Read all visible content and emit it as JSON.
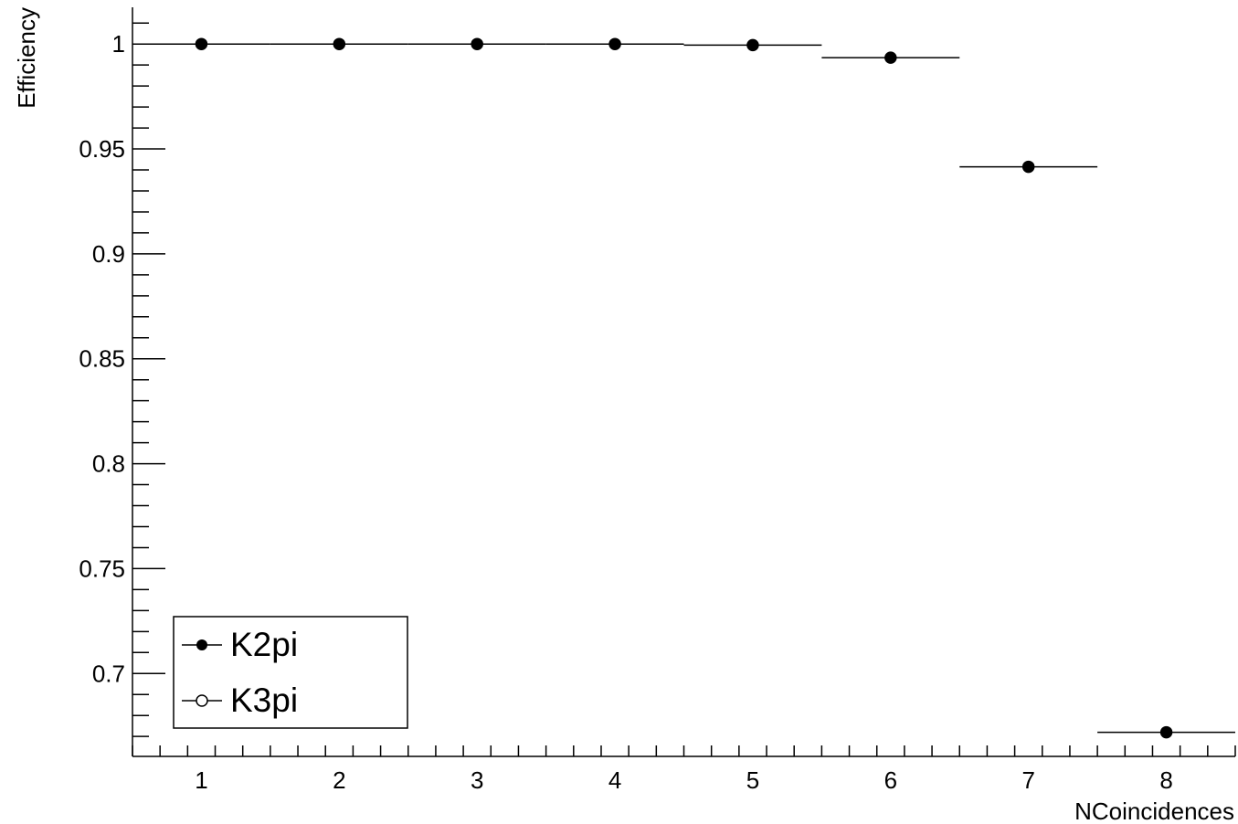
{
  "chart_data": {
    "type": "scatter",
    "title": "",
    "xlabel": "NCoincidences",
    "ylabel": "Efficiency",
    "xlim": [
      0.5,
      8.5
    ],
    "ylim": [
      0.6605,
      1.0175
    ],
    "x_ticks": [
      1,
      2,
      3,
      4,
      5,
      6,
      7,
      8
    ],
    "y_ticks": [
      0.7,
      0.75,
      0.8,
      0.85,
      0.9,
      0.95,
      1
    ],
    "x_tick_labels": [
      "1",
      "2",
      "3",
      "4",
      "5",
      "6",
      "7",
      "8"
    ],
    "y_tick_labels": [
      "0.7",
      "0.75",
      "0.8",
      "0.85",
      "0.9",
      "0.95",
      "1"
    ],
    "x_error_halfwidth": 0.5,
    "legend_position": "bottom-left",
    "legend": [
      {
        "label": "K2pi",
        "marker": "filled-circle"
      },
      {
        "label": "K3pi",
        "marker": "open-circle"
      }
    ],
    "series": [
      {
        "name": "K2pi",
        "marker": "filled-circle",
        "color": "#000000",
        "x": [
          1,
          2,
          3,
          4,
          5,
          6,
          7,
          8
        ],
        "values": [
          1.0,
          1.0,
          1.0,
          1.0,
          0.9995,
          0.9935,
          0.9415,
          0.672
        ]
      },
      {
        "name": "K3pi",
        "marker": "open-circle",
        "color": "#000000",
        "x": [],
        "values": []
      }
    ]
  }
}
